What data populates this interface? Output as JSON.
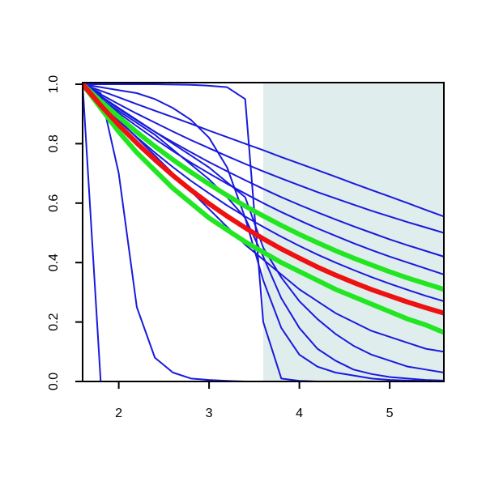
{
  "chart_data": {
    "type": "line",
    "x": [
      1.6,
      1.8,
      2.0,
      2.2,
      2.4,
      2.6,
      2.8,
      3.0,
      3.2,
      3.4,
      3.6,
      3.8,
      4.0,
      4.2,
      4.4,
      4.6,
      4.8,
      5.0,
      5.2,
      5.4,
      5.6
    ],
    "xlim": [
      1.6,
      5.6
    ],
    "ylim": [
      0,
      1
    ],
    "xticks": [
      2,
      3,
      4,
      5
    ],
    "yticks": [
      {
        "value": 0,
        "label": "0.0"
      },
      0.2,
      0.4,
      0.6,
      0.8,
      {
        "value": 1,
        "label": "1.0"
      }
    ],
    "shaded_region": {
      "xlim": [
        3.6,
        5.6
      ],
      "color": "#e0eded"
    },
    "series": [
      {
        "color": "#1a1adc",
        "linewidth": 2,
        "values": [
          1,
          0.978,
          0.956,
          0.933,
          0.911,
          0.889,
          0.867,
          0.844,
          0.822,
          0.8,
          0.778,
          0.755,
          0.733,
          0.711,
          0.689,
          0.666,
          0.644,
          0.622,
          0.6,
          0.577,
          0.555
        ]
      },
      {
        "color": "#1a1adc",
        "linewidth": 2,
        "values": [
          1,
          0.966,
          0.933,
          0.901,
          0.871,
          0.841,
          0.812,
          0.785,
          0.758,
          0.732,
          0.707,
          0.683,
          0.66,
          0.637,
          0.616,
          0.595,
          0.574,
          0.555,
          0.536,
          0.518,
          0.5
        ]
      },
      {
        "color": "#1a1adc",
        "linewidth": 2,
        "values": [
          1,
          0.957,
          0.917,
          0.878,
          0.84,
          0.805,
          0.771,
          0.738,
          0.707,
          0.677,
          0.648,
          0.62,
          0.594,
          0.569,
          0.545,
          0.522,
          0.5,
          0.478,
          0.458,
          0.439,
          0.42
        ]
      },
      {
        "color": "#1a1adc",
        "linewidth": 2,
        "values": [
          1,
          0.95,
          0.903,
          0.859,
          0.816,
          0.775,
          0.736,
          0.7,
          0.665,
          0.632,
          0.6,
          0.57,
          0.542,
          0.515,
          0.49,
          0.465,
          0.442,
          0.42,
          0.4,
          0.38,
          0.36
        ]
      },
      {
        "color": "#1a1adc",
        "linewidth": 2,
        "values": [
          1,
          0.937,
          0.877,
          0.822,
          0.77,
          0.721,
          0.675,
          0.633,
          0.592,
          0.555,
          0.52,
          0.487,
          0.456,
          0.427,
          0.4,
          0.375,
          0.351,
          0.329,
          0.308,
          0.288,
          0.27
        ]
      },
      {
        "color": "#1a1adc",
        "linewidth": 2,
        "values": [
          1,
          0.94,
          0.88,
          0.82,
          0.76,
          0.7,
          0.64,
          0.58,
          0.52,
          0.46,
          0.41,
          0.36,
          0.31,
          0.27,
          0.23,
          0.2,
          0.17,
          0.15,
          0.13,
          0.11,
          0.1
        ]
      },
      {
        "color": "#1a1adc",
        "linewidth": 2,
        "values": [
          1,
          1,
          1,
          1,
          1,
          0.999,
          0.998,
          0.995,
          0.99,
          0.95,
          0.2,
          0.01,
          0.002,
          0,
          0,
          0,
          0,
          0,
          0,
          0,
          0
        ]
      },
      {
        "color": "#1a1adc",
        "linewidth": 2,
        "values": [
          1,
          0.99,
          0.98,
          0.97,
          0.95,
          0.92,
          0.88,
          0.82,
          0.72,
          0.55,
          0.34,
          0.18,
          0.09,
          0.05,
          0.03,
          0.02,
          0.01,
          0.005,
          0.003,
          0.002,
          0.001
        ]
      },
      {
        "color": "#1a1adc",
        "linewidth": 2,
        "values": [
          1,
          0.95,
          0.91,
          0.87,
          0.83,
          0.78,
          0.73,
          0.68,
          0.62,
          0.55,
          0.42,
          0.28,
          0.18,
          0.11,
          0.07,
          0.04,
          0.025,
          0.015,
          0.01,
          0.005,
          0.003
        ]
      },
      {
        "color": "#1a1adc",
        "linewidth": 2,
        "values": [
          1,
          0.96,
          0.92,
          0.88,
          0.84,
          0.8,
          0.76,
          0.72,
          0.67,
          0.62,
          0.45,
          0.35,
          0.27,
          0.21,
          0.16,
          0.12,
          0.09,
          0.07,
          0.05,
          0.04,
          0.03
        ]
      },
      {
        "color": "#1a1adc",
        "linewidth": 2,
        "values": [
          1,
          0,
          0,
          0,
          0,
          0,
          0,
          0,
          0,
          0,
          0,
          0,
          0,
          0,
          0,
          0,
          0,
          0,
          0,
          0,
          0
        ]
      },
      {
        "color": "#1a1adc",
        "linewidth": 2,
        "values": [
          1,
          0.97,
          0.7,
          0.25,
          0.08,
          0.03,
          0.01,
          0.005,
          0.002,
          0,
          0,
          0,
          0,
          0,
          0,
          0,
          0,
          0,
          0,
          0,
          0
        ]
      },
      {
        "color": "#22e622",
        "linewidth": 6,
        "values": [
          1,
          0.943,
          0.89,
          0.839,
          0.791,
          0.746,
          0.704,
          0.664,
          0.626,
          0.59,
          0.557,
          0.525,
          0.495,
          0.467,
          0.44,
          0.415,
          0.392,
          0.369,
          0.348,
          0.329,
          0.31
        ]
      },
      {
        "color": "#22e622",
        "linewidth": 6,
        "values": [
          1,
          0.92,
          0.84,
          0.77,
          0.71,
          0.65,
          0.6,
          0.55,
          0.51,
          0.47,
          0.435,
          0.4,
          0.37,
          0.34,
          0.31,
          0.285,
          0.26,
          0.235,
          0.21,
          0.19,
          0.165
        ]
      },
      {
        "color": "#ee1111",
        "linewidth": 6,
        "values": [
          1,
          0.929,
          0.863,
          0.802,
          0.746,
          0.693,
          0.644,
          0.598,
          0.556,
          0.517,
          0.48,
          0.446,
          0.415,
          0.385,
          0.358,
          0.333,
          0.309,
          0.288,
          0.267,
          0.248,
          0.23
        ]
      }
    ]
  }
}
